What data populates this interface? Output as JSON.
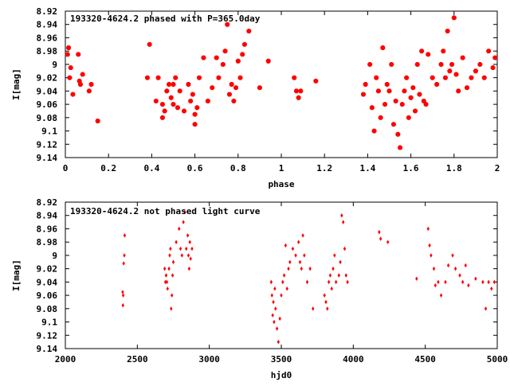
{
  "chart_data": [
    {
      "type": "scatter",
      "title": "193320-4624.2 phased with P=365.0day",
      "xlabel": "phase",
      "ylabel": "I[mag]",
      "xlim": [
        0,
        2
      ],
      "ylim": [
        9.14,
        8.92
      ],
      "y_inverted": true,
      "grid": false,
      "marker_color": "#ff0000",
      "marker": "filled-octagon",
      "xticks": [
        0,
        0.2,
        0.4,
        0.6,
        0.8,
        1,
        1.2,
        1.4,
        1.6,
        1.8,
        2
      ],
      "xtick_labels": [
        "0",
        "0.2",
        "0.4",
        "0.6",
        "0.8",
        "1",
        "1.2",
        "1.4",
        "1.6",
        "1.8",
        "2"
      ],
      "yticks": [
        8.92,
        8.94,
        8.96,
        8.98,
        9.0,
        9.02,
        9.04,
        9.06,
        9.08,
        9.1,
        9.12,
        9.14
      ],
      "ytick_labels": [
        "8.92",
        "8.94",
        "8.96",
        "8.98",
        "9",
        "9.02",
        "9.04",
        "9.06",
        "9.08",
        "9.1",
        "9.12",
        "9.14"
      ],
      "x": [
        0.01,
        0.015,
        0.02,
        0.025,
        0.035,
        0.06,
        0.065,
        0.07,
        0.08,
        0.11,
        0.12,
        0.15,
        0.38,
        0.39,
        0.42,
        0.43,
        0.45,
        0.45,
        0.46,
        0.47,
        0.48,
        0.49,
        0.5,
        0.5,
        0.51,
        0.52,
        0.53,
        0.55,
        0.57,
        0.58,
        0.59,
        0.6,
        0.6,
        0.61,
        0.62,
        0.64,
        0.66,
        0.68,
        0.7,
        0.71,
        0.73,
        0.74,
        0.75,
        0.76,
        0.77,
        0.78,
        0.79,
        0.8,
        0.81,
        0.82,
        0.83,
        0.85,
        0.9,
        0.94,
        1.06,
        1.07,
        1.08,
        1.09,
        1.16,
        1.38,
        1.39,
        1.41,
        1.42,
        1.43,
        1.44,
        1.45,
        1.46,
        1.47,
        1.48,
        1.49,
        1.5,
        1.51,
        1.52,
        1.53,
        1.54,
        1.55,
        1.56,
        1.57,
        1.58,
        1.59,
        1.6,
        1.61,
        1.62,
        1.63,
        1.64,
        1.65,
        1.66,
        1.67,
        1.68,
        1.7,
        1.72,
        1.74,
        1.75,
        1.76,
        1.77,
        1.78,
        1.79,
        1.8,
        1.81,
        1.82,
        1.84,
        1.86,
        1.88,
        1.9,
        1.92,
        1.94,
        1.96,
        1.98,
        1.99
      ],
      "y": [
        8.985,
        8.975,
        9.02,
        9.005,
        9.045,
        8.985,
        9.025,
        9.03,
        9.015,
        9.04,
        9.03,
        9.085,
        9.02,
        8.97,
        9.055,
        9.02,
        9.08,
        9.06,
        9.07,
        9.04,
        9.03,
        9.05,
        9.03,
        9.06,
        9.02,
        9.065,
        9.04,
        9.07,
        9.03,
        9.055,
        9.045,
        9.09,
        9.075,
        9.065,
        9.02,
        8.99,
        9.055,
        9.035,
        8.99,
        9.02,
        9.0,
        8.98,
        8.94,
        9.045,
        9.03,
        9.055,
        9.035,
        8.995,
        9.02,
        8.985,
        8.97,
        8.95,
        9.035,
        8.995,
        9.02,
        9.04,
        9.05,
        9.04,
        9.025,
        9.045,
        9.03,
        9.0,
        9.065,
        9.1,
        9.02,
        9.04,
        9.08,
        8.975,
        9.06,
        9.03,
        9.04,
        9.0,
        9.09,
        9.055,
        9.105,
        9.125,
        9.06,
        9.04,
        9.02,
        9.08,
        9.05,
        9.035,
        9.07,
        9.0,
        9.045,
        8.98,
        9.055,
        9.06,
        8.985,
        9.02,
        9.03,
        9.0,
        8.98,
        9.02,
        8.95,
        9.01,
        9.0,
        8.93,
        9.015,
        9.04,
        8.99,
        9.035,
        9.02,
        9.01,
        9.0,
        9.02,
        8.98,
        9.005,
        8.99
      ]
    },
    {
      "type": "scatter",
      "title": "193320-4624.2 not phased light curve",
      "xlabel": "hjd0",
      "ylabel": "I[mag]",
      "xlim": [
        2000,
        5000
      ],
      "ylim": [
        9.14,
        8.92
      ],
      "y_inverted": true,
      "grid": false,
      "marker_color": "#ff0000",
      "marker": "small-diamond",
      "xticks": [
        2000,
        2500,
        3000,
        3500,
        4000,
        4500,
        5000
      ],
      "xtick_labels": [
        "2000",
        "2500",
        "3000",
        "3500",
        "4000",
        "4500",
        "5000"
      ],
      "yticks": [
        8.92,
        8.94,
        8.96,
        8.98,
        9.0,
        9.02,
        9.04,
        9.06,
        9.08,
        9.1,
        9.12,
        9.14
      ],
      "ytick_labels": [
        "8.92",
        "8.94",
        "8.96",
        "8.98",
        "9",
        "9.02",
        "9.04",
        "9.06",
        "9.08",
        "9.1",
        "9.12",
        "9.14"
      ],
      "x": [
        2398,
        2400,
        2402,
        2405,
        2410,
        2412,
        2690,
        2695,
        2700,
        2705,
        2710,
        2720,
        2725,
        2730,
        2735,
        2740,
        2745,
        2750,
        2770,
        2790,
        2800,
        2810,
        2820,
        2830,
        2840,
        2850,
        2855,
        2860,
        2865,
        2870,
        2880,
        3430,
        3435,
        3440,
        3445,
        3450,
        3455,
        3460,
        3470,
        3480,
        3490,
        3500,
        3510,
        3520,
        3530,
        3540,
        3550,
        3560,
        3580,
        3600,
        3620,
        3630,
        3640,
        3650,
        3660,
        3680,
        3700,
        3720,
        3800,
        3810,
        3820,
        3830,
        3840,
        3850,
        3860,
        3870,
        3880,
        3900,
        3910,
        3920,
        3930,
        3940,
        3950,
        3960,
        4180,
        4190,
        4240,
        4440,
        4520,
        4530,
        4540,
        4560,
        4570,
        4590,
        4610,
        4640,
        4660,
        4690,
        4710,
        4740,
        4760,
        4780,
        4800,
        4850,
        4900,
        4920,
        4940,
        4960,
        4980
      ],
      "y": [
        9.055,
        9.075,
        9.06,
        9.012,
        9.0,
        8.97,
        9.02,
        9.04,
        9.03,
        9.04,
        9.05,
        9.02,
        9.0,
        8.99,
        9.08,
        9.06,
        9.03,
        9.01,
        8.98,
        8.96,
        8.99,
        9.0,
        8.95,
        8.935,
        8.99,
        8.97,
        9.0,
        9.02,
        8.98,
        9.005,
        8.99,
        9.04,
        9.06,
        9.09,
        9.07,
        9.1,
        9.05,
        9.08,
        9.11,
        9.13,
        9.095,
        9.06,
        9.04,
        9.03,
        8.985,
        9.05,
        9.02,
        9.01,
        8.99,
        9.0,
        8.98,
        9.01,
        9.02,
        8.97,
        9.0,
        9.04,
        9.02,
        9.08,
        9.06,
        9.07,
        9.08,
        9.04,
        9.03,
        9.05,
        9.02,
        9.0,
        9.04,
        9.03,
        9.01,
        8.94,
        8.95,
        8.99,
        9.03,
        9.04,
        8.965,
        8.975,
        8.98,
        9.035,
        8.96,
        8.985,
        9.0,
        9.02,
        9.045,
        9.04,
        9.06,
        9.04,
        9.015,
        9.0,
        9.02,
        9.03,
        9.04,
        9.015,
        9.045,
        9.035,
        9.04,
        9.08,
        9.04,
        9.05,
        9.04
      ]
    }
  ]
}
